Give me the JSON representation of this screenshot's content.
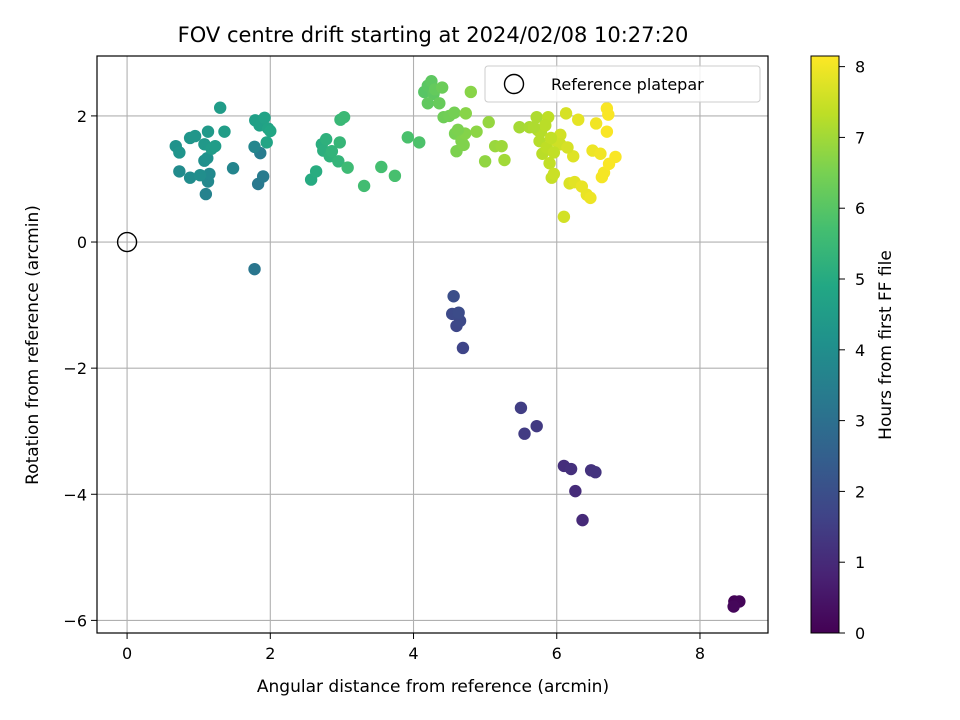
{
  "chart_data": {
    "type": "scatter",
    "title": "FOV centre drift starting at 2024/02/08 10:27:20",
    "xlabel": "Angular distance from reference (arcmin)",
    "ylabel": "Rotation from reference (arcmin)",
    "xlim": [
      -0.42,
      8.95
    ],
    "ylim": [
      -6.2,
      2.95
    ],
    "x_ticks": [
      0,
      2,
      4,
      6,
      8
    ],
    "y_ticks": [
      -6,
      -4,
      -2,
      0,
      2
    ],
    "grid": true,
    "legend": {
      "placement": "top-right",
      "entries": [
        "Reference platepar"
      ]
    },
    "reference_point": {
      "x": 0,
      "y": 0,
      "label": "Reference platepar"
    },
    "colorbar": {
      "label": "Hours from first FF file",
      "range": [
        0,
        8.15
      ],
      "ticks": [
        0,
        1,
        2,
        3,
        4,
        5,
        6,
        7,
        8
      ],
      "colormap": "viridis"
    },
    "series": [
      {
        "points": [
          [
            8.48,
            -5.7,
            0.05
          ],
          [
            8.55,
            -5.7,
            0.1
          ],
          [
            8.47,
            -5.78,
            0.15
          ],
          [
            6.36,
            -4.41,
            1.0
          ],
          [
            6.26,
            -3.95,
            1.05
          ],
          [
            6.1,
            -3.55,
            1.1
          ],
          [
            6.2,
            -3.6,
            1.15
          ],
          [
            6.48,
            -3.62,
            1.2
          ],
          [
            6.54,
            -3.65,
            1.25
          ],
          [
            5.72,
            -2.92,
            1.4
          ],
          [
            5.55,
            -3.04,
            1.45
          ],
          [
            5.5,
            -2.63,
            1.5
          ],
          [
            4.69,
            -1.68,
            1.7
          ],
          [
            4.6,
            -1.33,
            1.75
          ],
          [
            4.65,
            -1.25,
            1.8
          ],
          [
            4.54,
            -1.14,
            1.85
          ],
          [
            4.63,
            -1.12,
            1.9
          ],
          [
            4.56,
            -0.86,
            1.95
          ],
          [
            1.78,
            -0.43,
            3.2
          ],
          [
            1.83,
            0.92,
            3.3
          ],
          [
            1.9,
            1.04,
            3.35
          ],
          [
            1.86,
            1.41,
            3.4
          ],
          [
            1.1,
            0.76,
            3.6
          ],
          [
            1.48,
            1.17,
            3.7
          ],
          [
            1.78,
            1.51,
            3.75
          ],
          [
            1.13,
            0.96,
            3.8
          ],
          [
            1.15,
            1.08,
            3.85
          ],
          [
            0.73,
            1.12,
            3.9
          ],
          [
            0.88,
            1.02,
            3.95
          ],
          [
            1.02,
            1.06,
            4.0
          ],
          [
            1.08,
            1.29,
            4.05
          ],
          [
            1.12,
            1.33,
            4.1
          ],
          [
            0.68,
            1.52,
            4.15
          ],
          [
            0.73,
            1.42,
            4.2
          ],
          [
            0.88,
            1.65,
            4.25
          ],
          [
            0.95,
            1.68,
            4.3
          ],
          [
            1.08,
            1.55,
            4.35
          ],
          [
            1.13,
            1.75,
            4.4
          ],
          [
            1.18,
            1.48,
            4.45
          ],
          [
            1.23,
            1.52,
            4.5
          ],
          [
            1.3,
            2.13,
            4.5
          ],
          [
            1.36,
            1.75,
            4.55
          ],
          [
            1.79,
            1.93,
            4.6
          ],
          [
            1.85,
            1.85,
            4.65
          ],
          [
            1.92,
            1.97,
            4.7
          ],
          [
            1.97,
            1.8,
            4.75
          ],
          [
            1.95,
            1.58,
            4.8
          ],
          [
            2.0,
            1.76,
            4.85
          ],
          [
            2.57,
            0.99,
            5.0
          ],
          [
            2.64,
            1.12,
            5.05
          ],
          [
            2.72,
            1.55,
            5.1
          ],
          [
            2.74,
            1.45,
            5.15
          ],
          [
            2.78,
            1.63,
            5.2
          ],
          [
            2.83,
            1.36,
            5.25
          ],
          [
            2.86,
            1.44,
            5.3
          ],
          [
            2.95,
            1.28,
            5.35
          ],
          [
            2.97,
            1.58,
            5.4
          ],
          [
            2.98,
            1.94,
            5.45
          ],
          [
            3.03,
            1.98,
            5.5
          ],
          [
            3.08,
            1.18,
            5.55
          ],
          [
            3.31,
            0.89,
            5.65
          ],
          [
            3.55,
            1.19,
            5.7
          ],
          [
            3.74,
            1.05,
            5.75
          ],
          [
            3.92,
            1.66,
            5.8
          ],
          [
            4.08,
            1.58,
            5.85
          ],
          [
            4.15,
            2.38,
            6.0
          ],
          [
            4.2,
            2.48,
            6.05
          ],
          [
            4.25,
            2.55,
            6.1
          ],
          [
            4.28,
            2.35,
            6.1
          ],
          [
            4.2,
            2.2,
            6.15
          ],
          [
            4.3,
            2.42,
            6.2
          ],
          [
            4.36,
            2.2,
            6.25
          ],
          [
            4.4,
            2.45,
            6.3
          ],
          [
            4.42,
            1.98,
            6.35
          ],
          [
            4.5,
            2.0,
            6.4
          ],
          [
            4.57,
            2.05,
            6.45
          ],
          [
            4.58,
            1.72,
            6.5
          ],
          [
            4.6,
            1.44,
            6.55
          ],
          [
            4.67,
            1.6,
            6.6
          ],
          [
            4.7,
            1.54,
            6.6
          ],
          [
            4.72,
            1.72,
            6.65
          ],
          [
            4.73,
            2.04,
            6.7
          ],
          [
            4.8,
            2.38,
            6.7
          ],
          [
            4.88,
            1.75,
            6.75
          ],
          [
            5.0,
            1.28,
            6.8
          ],
          [
            5.05,
            1.9,
            6.85
          ],
          [
            5.14,
            1.52,
            6.9
          ],
          [
            5.23,
            1.52,
            6.95
          ],
          [
            5.27,
            1.3,
            7.0
          ],
          [
            5.48,
            1.82,
            7.05
          ],
          [
            5.62,
            1.82,
            7.1
          ],
          [
            5.72,
            1.98,
            7.15
          ],
          [
            5.74,
            1.77,
            7.2
          ],
          [
            5.76,
            1.6,
            7.25
          ],
          [
            5.8,
            1.4,
            7.3
          ],
          [
            5.86,
            1.5,
            7.35
          ],
          [
            5.88,
            1.98,
            7.35
          ],
          [
            5.9,
            1.25,
            7.4
          ],
          [
            5.93,
            1.02,
            7.45
          ],
          [
            5.96,
            1.08,
            7.5
          ],
          [
            6.0,
            1.6,
            7.55
          ],
          [
            6.05,
            1.7,
            7.6
          ],
          [
            6.1,
            0.4,
            7.6
          ],
          [
            6.13,
            2.04,
            7.65
          ],
          [
            6.18,
            0.93,
            7.7
          ],
          [
            6.23,
            1.36,
            7.75
          ],
          [
            6.25,
            0.95,
            7.8
          ],
          [
            6.3,
            1.94,
            7.85
          ],
          [
            6.35,
            0.88,
            7.9
          ],
          [
            6.42,
            0.75,
            7.9
          ],
          [
            6.47,
            0.7,
            7.95
          ],
          [
            6.5,
            1.45,
            7.95
          ],
          [
            6.55,
            1.88,
            8.0
          ],
          [
            6.61,
            1.4,
            8.0
          ],
          [
            6.63,
            1.03,
            8.05
          ],
          [
            6.66,
            1.1,
            8.05
          ],
          [
            6.7,
            1.75,
            8.1
          ],
          [
            6.72,
            2.02,
            8.1
          ],
          [
            6.73,
            1.24,
            8.1
          ],
          [
            6.82,
            1.35,
            8.1
          ],
          [
            6.7,
            2.12,
            8.1
          ],
          [
            6.05,
            1.55,
            7.55
          ],
          [
            5.96,
            1.42,
            7.4
          ],
          [
            5.78,
            1.75,
            7.25
          ],
          [
            5.84,
            1.85,
            7.3
          ],
          [
            5.92,
            1.65,
            7.4
          ],
          [
            6.15,
            1.5,
            7.65
          ],
          [
            5.68,
            1.82,
            7.15
          ],
          [
            4.62,
            1.78,
            6.55
          ]
        ]
      }
    ]
  }
}
